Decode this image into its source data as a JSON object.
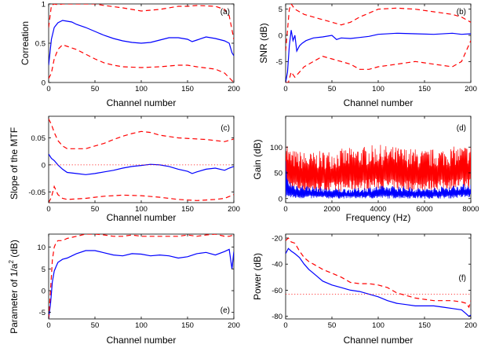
{
  "chart_data": [
    {
      "panel": "a",
      "type": "line",
      "panel_label": "(a)",
      "xlabel": "Channel number",
      "ylabel": "Correation",
      "xlim": [
        0,
        200
      ],
      "ylim": [
        0,
        1
      ],
      "xticks": [
        "0",
        "50",
        "100",
        "150",
        "200"
      ],
      "yticks": [
        "0",
        "0.5",
        "1"
      ],
      "colors": {
        "mean": "#0000ff",
        "bounds": "#ff0000"
      },
      "series": [
        {
          "role": "mean",
          "style": "solid",
          "x": [
            0,
            3,
            6,
            10,
            15,
            20,
            25,
            30,
            40,
            50,
            60,
            70,
            80,
            90,
            100,
            110,
            120,
            130,
            140,
            150,
            155,
            160,
            170,
            180,
            190,
            195,
            198,
            200
          ],
          "y": [
            0.22,
            0.55,
            0.7,
            0.76,
            0.79,
            0.78,
            0.77,
            0.74,
            0.7,
            0.65,
            0.6,
            0.56,
            0.53,
            0.51,
            0.5,
            0.51,
            0.54,
            0.57,
            0.57,
            0.55,
            0.52,
            0.54,
            0.58,
            0.56,
            0.53,
            0.5,
            0.38,
            0.34
          ]
        },
        {
          "role": "upper",
          "style": "dashed",
          "x": [
            0,
            3,
            6,
            10,
            15,
            20,
            30,
            40,
            50,
            60,
            80,
            100,
            120,
            140,
            150,
            160,
            180,
            190,
            195,
            200
          ],
          "y": [
            0.7,
            0.98,
            1.0,
            0.99,
            1.0,
            1.0,
            1.0,
            1.0,
            1.0,
            0.98,
            0.95,
            0.91,
            0.93,
            0.97,
            0.97,
            0.98,
            0.97,
            0.93,
            0.85,
            0.55
          ]
        },
        {
          "role": "lower",
          "style": "dashed",
          "x": [
            0,
            3,
            6,
            10,
            15,
            20,
            30,
            40,
            50,
            60,
            70,
            80,
            100,
            120,
            140,
            150,
            160,
            180,
            190,
            195,
            200
          ],
          "y": [
            0.05,
            0.12,
            0.3,
            0.42,
            0.48,
            0.46,
            0.42,
            0.36,
            0.3,
            0.25,
            0.22,
            0.2,
            0.19,
            0.2,
            0.22,
            0.22,
            0.2,
            0.17,
            0.12,
            0.06,
            0.0
          ]
        }
      ]
    },
    {
      "panel": "b",
      "type": "line",
      "panel_label": "(b)",
      "xlabel": "Channel number",
      "ylabel": "SNR (dB)",
      "xlim": [
        0,
        200
      ],
      "ylim": [
        -9,
        6
      ],
      "xticks": [
        "0",
        "50",
        "100",
        "150",
        "200"
      ],
      "yticks": [
        "5",
        "0",
        "-5"
      ],
      "series": [
        {
          "role": "mean",
          "style": "solid",
          "x": [
            0,
            2,
            4,
            6,
            8,
            10,
            12,
            15,
            18,
            22,
            30,
            40,
            50,
            55,
            60,
            70,
            80,
            90,
            100,
            120,
            140,
            160,
            180,
            190,
            200
          ],
          "y": [
            -9,
            -7,
            -2,
            1,
            -1,
            0,
            -3,
            -2,
            -1.5,
            -1,
            -0.5,
            -0.3,
            0,
            -0.8,
            -0.5,
            -0.6,
            -0.4,
            -0.2,
            0.2,
            0.4,
            0.3,
            0.2,
            0.4,
            0.2,
            0.3
          ]
        },
        {
          "role": "upper",
          "style": "dashed",
          "x": [
            0,
            2,
            4,
            6,
            10,
            15,
            20,
            30,
            40,
            50,
            60,
            70,
            80,
            100,
            120,
            140,
            160,
            180,
            190,
            200
          ],
          "y": [
            -3,
            1,
            5,
            6,
            5,
            4.5,
            4,
            3.5,
            3,
            2.5,
            2,
            2.5,
            3.5,
            5,
            5.2,
            5,
            4.5,
            4,
            3.5,
            2.5
          ]
        },
        {
          "role": "lower",
          "style": "dashed",
          "x": [
            0,
            3,
            6,
            10,
            15,
            20,
            30,
            40,
            50,
            60,
            70,
            80,
            90,
            100,
            120,
            140,
            160,
            180,
            190,
            195,
            200
          ],
          "y": [
            -9,
            -9,
            -7,
            -8,
            -7,
            -6,
            -5,
            -4,
            -4.5,
            -5,
            -5.5,
            -6.5,
            -6.5,
            -6,
            -5.5,
            -5,
            -5.5,
            -6,
            -5,
            -3,
            -1
          ]
        }
      ]
    },
    {
      "panel": "c",
      "type": "line",
      "panel_label": "(c)",
      "xlabel": "Channel number",
      "ylabel": "Slope of the MTF",
      "xlim": [
        0,
        200
      ],
      "ylim": [
        -0.07,
        0.09
      ],
      "xticks": [
        "0",
        "50",
        "100",
        "150",
        "200"
      ],
      "yticks": [
        "0.05",
        "0",
        "-0.05"
      ],
      "series": [
        {
          "role": "mean",
          "style": "solid",
          "x": [
            0,
            3,
            6,
            10,
            15,
            20,
            30,
            40,
            50,
            60,
            70,
            80,
            90,
            100,
            110,
            120,
            130,
            140,
            150,
            155,
            160,
            170,
            180,
            190,
            195,
            200
          ],
          "y": [
            0.02,
            0.012,
            0.008,
            0.0,
            -0.008,
            -0.014,
            -0.016,
            -0.018,
            -0.016,
            -0.013,
            -0.01,
            -0.006,
            -0.003,
            -0.001,
            0.001,
            0.0,
            -0.003,
            -0.008,
            -0.012,
            -0.016,
            -0.013,
            -0.008,
            -0.006,
            -0.01,
            -0.006,
            -0.003
          ]
        },
        {
          "role": "upper",
          "style": "dashed",
          "x": [
            0,
            3,
            6,
            10,
            15,
            20,
            30,
            40,
            50,
            60,
            70,
            80,
            90,
            100,
            110,
            120,
            140,
            160,
            170,
            180,
            190,
            200
          ],
          "y": [
            0.085,
            0.075,
            0.06,
            0.045,
            0.035,
            0.03,
            0.03,
            0.03,
            0.035,
            0.04,
            0.047,
            0.053,
            0.058,
            0.062,
            0.06,
            0.055,
            0.05,
            0.048,
            0.047,
            0.045,
            0.043,
            0.048
          ]
        },
        {
          "role": "lower",
          "style": "dashed",
          "x": [
            0,
            3,
            6,
            10,
            15,
            20,
            30,
            40,
            50,
            60,
            70,
            80,
            100,
            120,
            140,
            160,
            170,
            180,
            190,
            200
          ],
          "y": [
            -0.07,
            -0.06,
            -0.04,
            -0.055,
            -0.062,
            -0.064,
            -0.063,
            -0.062,
            -0.06,
            -0.058,
            -0.057,
            -0.056,
            -0.057,
            -0.06,
            -0.064,
            -0.066,
            -0.065,
            -0.064,
            -0.062,
            -0.055
          ]
        },
        {
          "role": "reference",
          "style": "dotted",
          "x": [
            0,
            200
          ],
          "y": [
            0,
            0
          ]
        }
      ]
    },
    {
      "panel": "d",
      "type": "line",
      "panel_label": "(d)",
      "xlabel": "Frequency (Hz)",
      "ylabel": "Gain (dB)",
      "xlim": [
        0,
        8000
      ],
      "ylim": [
        -8,
        160
      ],
      "xticks": [
        "0",
        "2000",
        "4000",
        "6000",
        "8000"
      ],
      "yticks": [
        "100",
        "50",
        "0"
      ],
      "series": [
        {
          "role": "upper",
          "style": "solid",
          "color": "#ff0000",
          "x": [
            0,
            100,
            300,
            1000,
            2000,
            3000,
            4000,
            5000,
            6000,
            7000,
            8000
          ],
          "envelope_high": [
            140,
            100,
            95,
            90,
            95,
            100,
            105,
            100,
            95,
            100,
            105
          ],
          "envelope_low": [
            20,
            18,
            15,
            12,
            12,
            15,
            18,
            15,
            15,
            18,
            20
          ]
        },
        {
          "role": "mean",
          "style": "solid",
          "color": "#0000ff",
          "x": [
            0,
            100,
            300,
            1000,
            2000,
            3000,
            4000,
            5000,
            6000,
            7000,
            8000
          ],
          "envelope_high": [
            80,
            40,
            30,
            25,
            20,
            20,
            25,
            25,
            20,
            25,
            30
          ],
          "envelope_low": [
            0,
            0,
            0,
            0,
            0,
            0,
            0,
            0,
            0,
            0,
            2
          ]
        }
      ]
    },
    {
      "panel": "e",
      "type": "line",
      "panel_label": "(e)",
      "xlabel": "Channel number",
      "ylabel": "Parameter of 1/a² (dB)",
      "ylabel_main": "Parameter of 1/a",
      "ylabel_sup": "2",
      "ylabel_end": " (dB)",
      "xlim": [
        0,
        200
      ],
      "ylim": [
        -6.5,
        13
      ],
      "xticks": [
        "0",
        "50",
        "100",
        "150",
        "200"
      ],
      "yticks": [
        "10",
        "5",
        "0",
        "-5"
      ],
      "series": [
        {
          "role": "mean",
          "style": "solid",
          "x": [
            0,
            2,
            4,
            6,
            8,
            10,
            15,
            20,
            30,
            40,
            50,
            60,
            70,
            80,
            90,
            100,
            110,
            120,
            130,
            140,
            150,
            160,
            170,
            180,
            190,
            195,
            198,
            200
          ],
          "y": [
            -6.5,
            -3,
            2,
            4.5,
            5.5,
            6.5,
            7.2,
            7.5,
            8.5,
            9.2,
            9.2,
            8.7,
            8.2,
            8.0,
            8.5,
            8.4,
            8.0,
            8.2,
            8.0,
            7.5,
            7.8,
            8.5,
            8.8,
            8.2,
            9.0,
            9.5,
            5,
            9.0
          ]
        },
        {
          "role": "upper",
          "style": "dashed",
          "x": [
            0,
            2,
            4,
            6,
            8,
            10,
            15,
            20,
            30,
            40,
            50,
            60,
            70,
            80,
            90,
            100,
            120,
            140,
            150,
            160,
            170,
            180,
            190,
            195,
            200
          ],
          "y": [
            -6.5,
            0,
            7,
            10,
            11,
            11.5,
            11.5,
            12,
            12.5,
            13,
            13,
            12.8,
            12.5,
            12.5,
            12.8,
            12.5,
            12.5,
            12.5,
            12.8,
            12.5,
            12.8,
            13,
            12.5,
            12.5,
            12.8
          ]
        }
      ]
    },
    {
      "panel": "f",
      "type": "line",
      "panel_label": "(f)",
      "xlabel": "Channel number",
      "ylabel": "Power (dB)",
      "xlim": [
        0,
        200
      ],
      "ylim": [
        -82,
        -17
      ],
      "xticks": [
        "0",
        "50",
        "100",
        "150",
        "200"
      ],
      "yticks": [
        "-20",
        "-40",
        "-60",
        "-80"
      ],
      "series": [
        {
          "role": "mean",
          "style": "solid",
          "x": [
            0,
            3,
            6,
            10,
            15,
            20,
            25,
            30,
            35,
            40,
            50,
            60,
            70,
            80,
            90,
            100,
            110,
            120,
            130,
            140,
            150,
            160,
            170,
            180,
            190,
            195,
            198,
            200
          ],
          "y": [
            -32,
            -28,
            -30,
            -32,
            -35,
            -40,
            -44,
            -47,
            -50,
            -53,
            -56,
            -58,
            -60,
            -61,
            -63,
            -65,
            -68,
            -70,
            -71,
            -72,
            -72,
            -72,
            -73,
            -74,
            -75,
            -78,
            -80,
            -79
          ]
        },
        {
          "role": "upper",
          "style": "dashed",
          "x": [
            0,
            3,
            6,
            10,
            15,
            20,
            25,
            30,
            40,
            50,
            60,
            70,
            80,
            90,
            100,
            110,
            120,
            140,
            160,
            180,
            190,
            195,
            198,
            200
          ],
          "y": [
            -22,
            -20,
            -23,
            -24,
            -30,
            -35,
            -38,
            -40,
            -44,
            -47,
            -50,
            -54,
            -55,
            -55,
            -56,
            -58,
            -62,
            -66,
            -68,
            -68,
            -69,
            -70,
            -73,
            -68
          ]
        },
        {
          "role": "reference",
          "style": "dotted",
          "x": [
            0,
            200
          ],
          "y": [
            -63,
            -63
          ]
        }
      ]
    }
  ]
}
